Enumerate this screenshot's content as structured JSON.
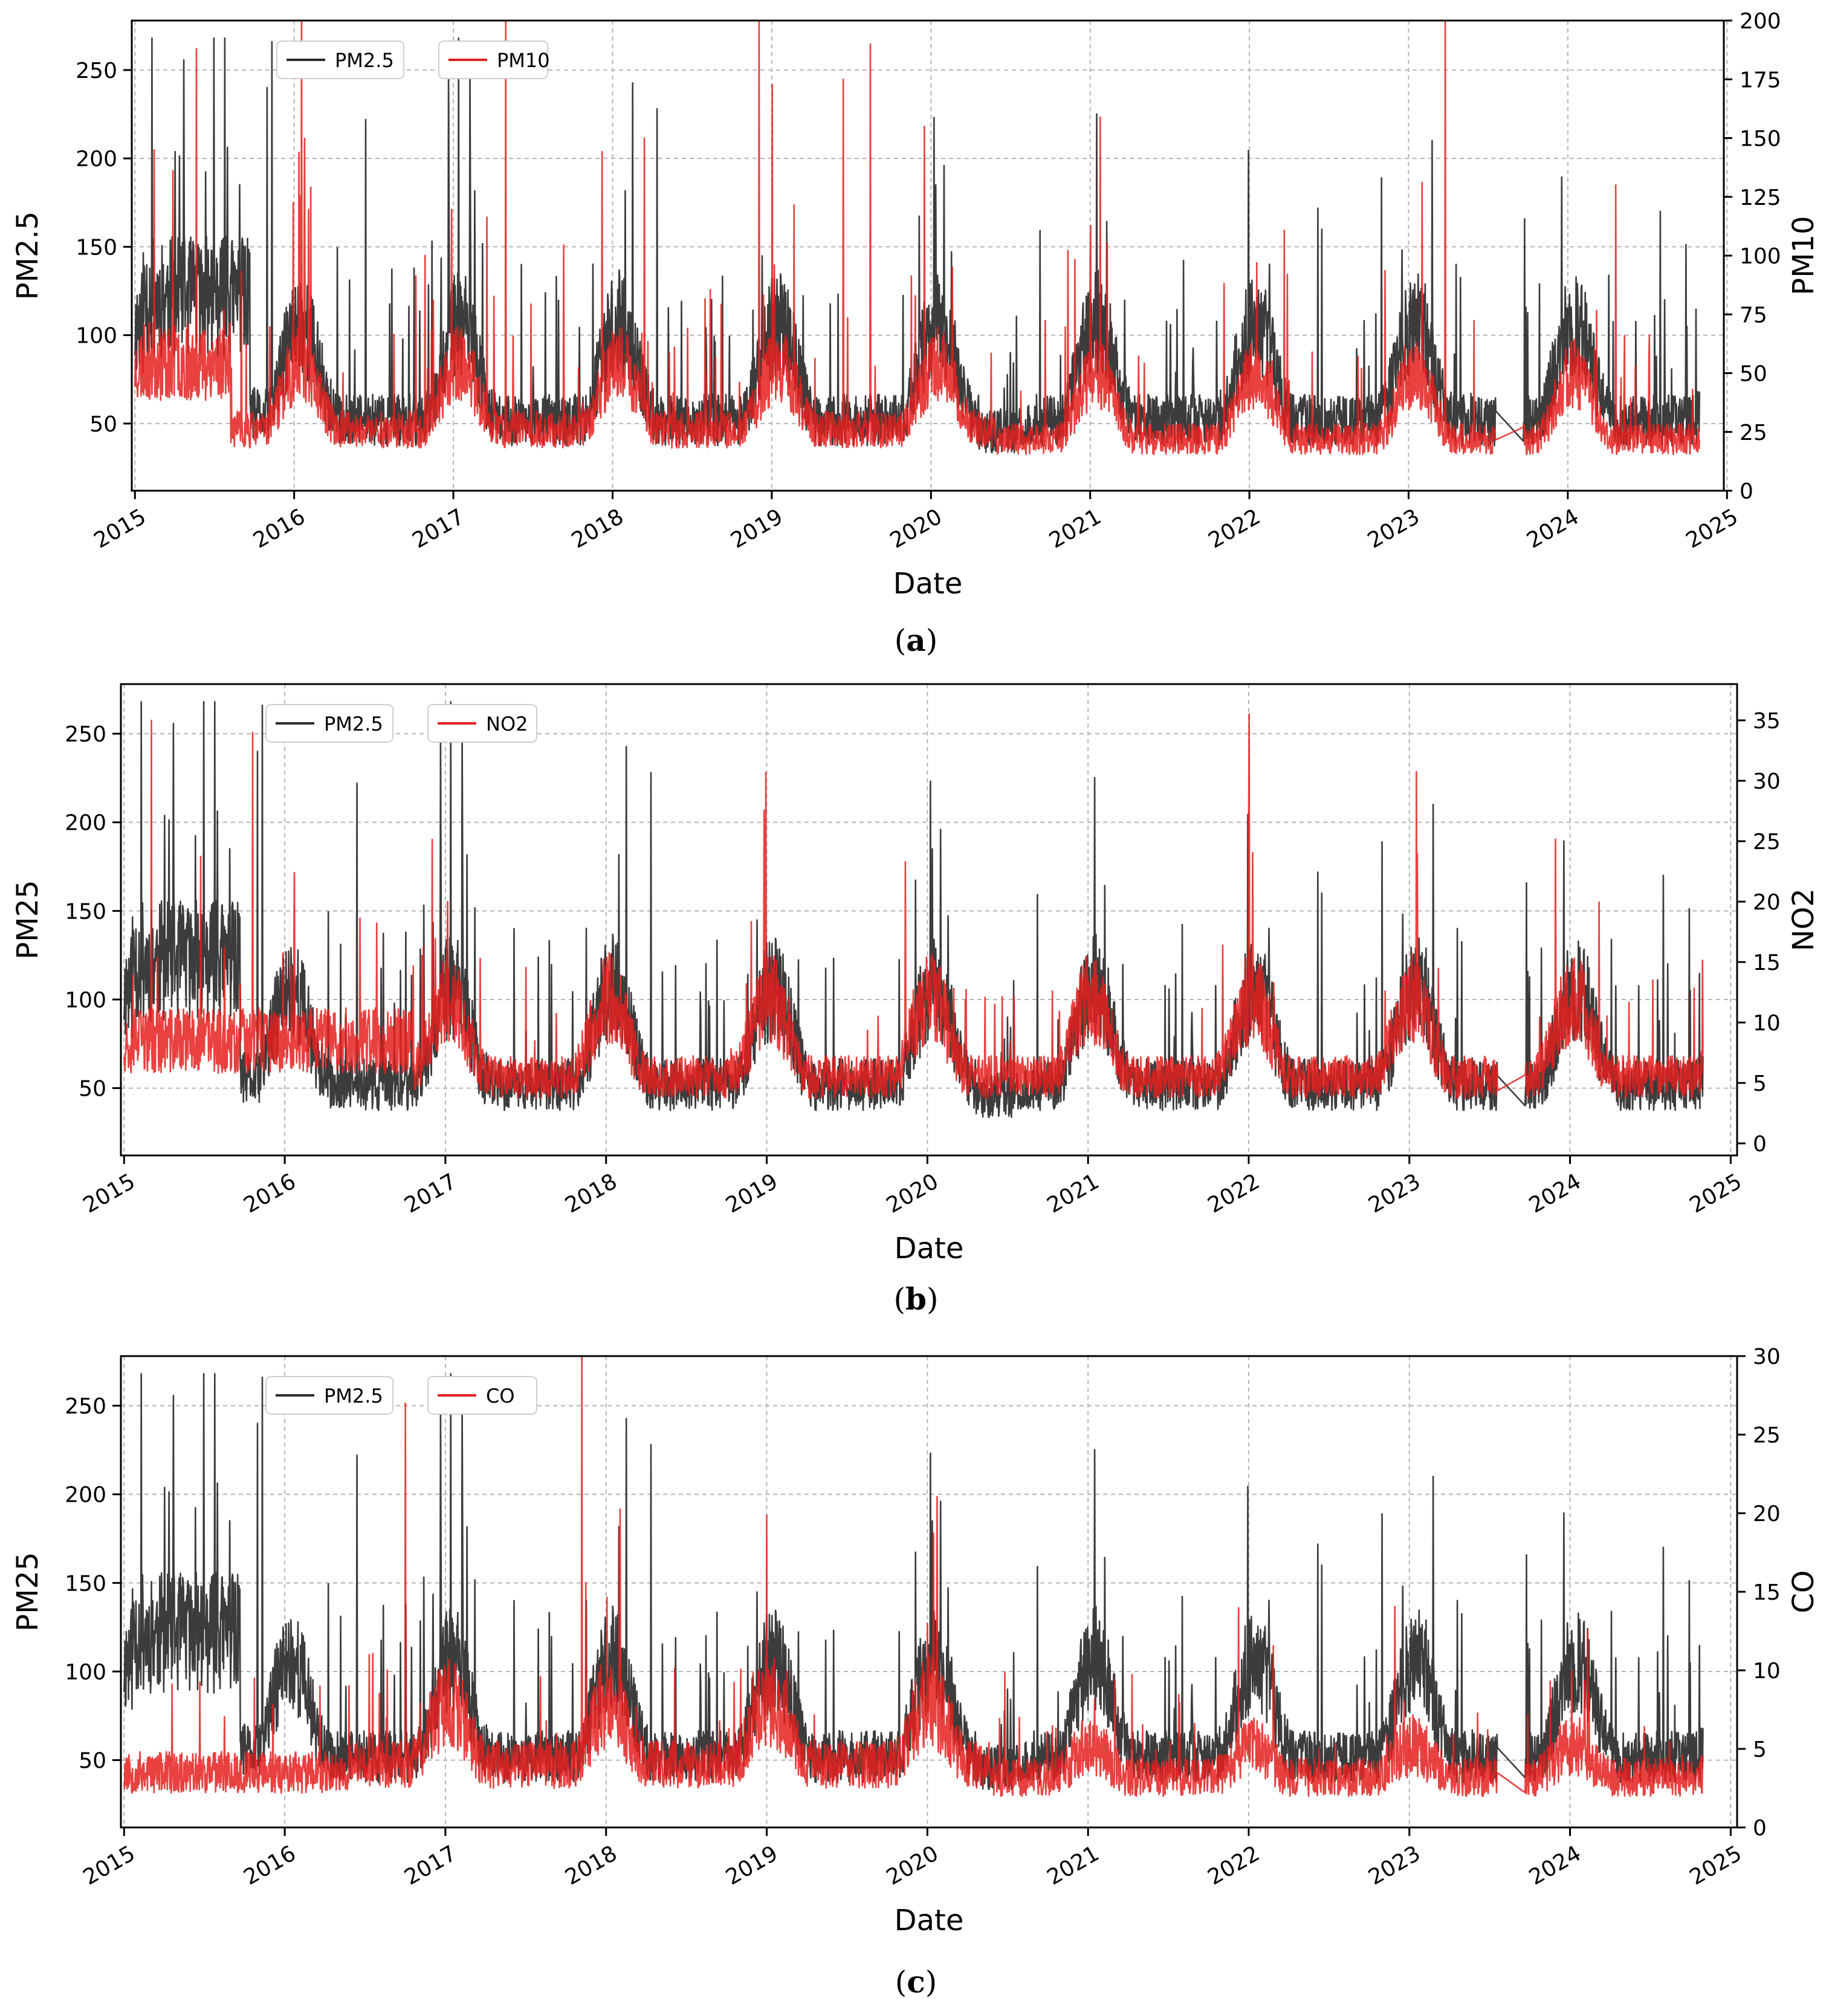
{
  "chart_data": [
    {
      "panel": "a",
      "type": "line",
      "title": "",
      "xlabel": "Date",
      "ylabel": "PM2.5",
      "y2label": "PM10",
      "xlim": [
        2014.98,
        2024.98
      ],
      "ylim": [
        12,
        278
      ],
      "y2lim": [
        0,
        200
      ],
      "xticks": [
        2015,
        2016,
        2017,
        2018,
        2019,
        2020,
        2021,
        2022,
        2023,
        2024,
        2025
      ],
      "yticks": [
        50,
        100,
        150,
        200,
        250
      ],
      "y2ticks": [
        0,
        25,
        50,
        75,
        100,
        125,
        150,
        175,
        200
      ],
      "grid": true,
      "legend_position": "top-left",
      "series": [
        {
          "name": "PM2.5",
          "axis": "left",
          "color": "#2b2b2b",
          "profile": "pm25",
          "seed": 11
        },
        {
          "name": "PM10",
          "axis": "right",
          "color": "#e4201e",
          "profile": "pm10",
          "seed": 23
        }
      ],
      "caption": "a"
    },
    {
      "panel": "b",
      "type": "line",
      "title": "",
      "xlabel": "Date",
      "ylabel": "PM25",
      "y2label": "NO2",
      "xlim": [
        2014.98,
        2025.04
      ],
      "ylim": [
        12,
        278
      ],
      "y2lim": [
        -1,
        38
      ],
      "xticks": [
        2015,
        2016,
        2017,
        2018,
        2019,
        2020,
        2021,
        2022,
        2023,
        2024,
        2025
      ],
      "yticks": [
        50,
        100,
        150,
        200,
        250
      ],
      "y2ticks": [
        0,
        5,
        10,
        15,
        20,
        25,
        30,
        35
      ],
      "grid": true,
      "legend_position": "top-left",
      "series": [
        {
          "name": "PM2.5",
          "axis": "left",
          "color": "#2b2b2b",
          "profile": "pm25",
          "seed": 11
        },
        {
          "name": "NO2",
          "axis": "right",
          "color": "#e4201e",
          "profile": "no2",
          "seed": 37
        }
      ],
      "caption": "b"
    },
    {
      "panel": "c",
      "type": "line",
      "title": "",
      "xlabel": "Date",
      "ylabel": "PM25",
      "y2label": "CO",
      "xlim": [
        2014.98,
        2025.04
      ],
      "ylim": [
        12,
        278
      ],
      "y2lim": [
        0,
        30
      ],
      "xticks": [
        2015,
        2016,
        2017,
        2018,
        2019,
        2020,
        2021,
        2022,
        2023,
        2024,
        2025
      ],
      "yticks": [
        50,
        100,
        150,
        200,
        250
      ],
      "y2ticks": [
        0,
        5,
        10,
        15,
        20,
        25,
        30
      ],
      "grid": true,
      "legend_position": "top-left",
      "series": [
        {
          "name": "PM2.5",
          "axis": "left",
          "color": "#2b2b2b",
          "profile": "pm25",
          "seed": 11
        },
        {
          "name": "CO",
          "axis": "right",
          "color": "#e4201e",
          "profile": "co",
          "seed": 53
        }
      ],
      "caption": "c"
    }
  ]
}
